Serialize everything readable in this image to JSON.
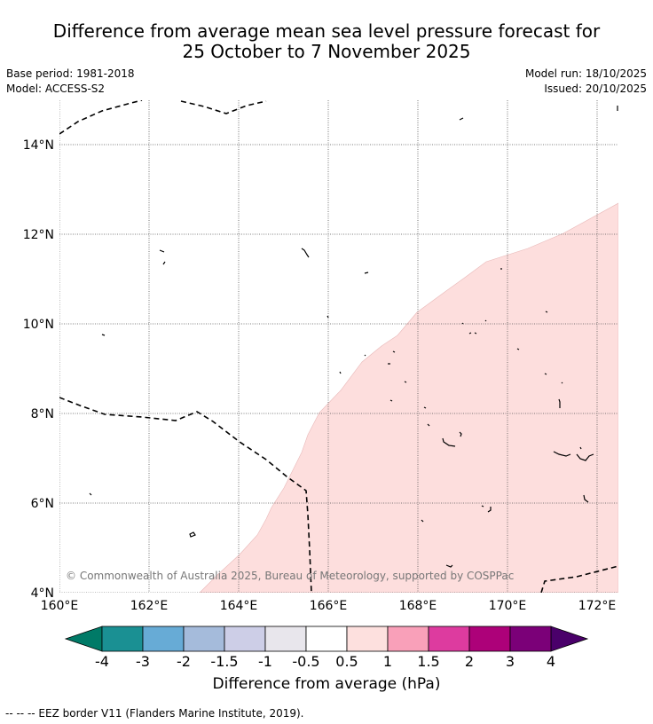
{
  "title": {
    "line1": "Difference from average mean sea level pressure forecast for",
    "line2": "25 October to 7 November 2025"
  },
  "meta": {
    "base_period": "Base period: 1981-2018",
    "model": "Model: ACCESS-S2",
    "model_run": "Model run: 18/10/2025",
    "issued": "Issued: 20/10/2025"
  },
  "map": {
    "lon_labels": [
      "160°E",
      "162°E",
      "164°E",
      "166°E",
      "168°E",
      "170°E",
      "172°E"
    ],
    "lat_labels": [
      "4°N",
      "6°N",
      "8°N",
      "10°N",
      "12°N",
      "14°N"
    ],
    "copyright": "© Commonwealth of Australia 2025, Bureau of Meteorology, supported by COSPPac",
    "anomaly_region_fill": "#fddedd",
    "anomaly_region_category": "0.5 to 1"
  },
  "colorbar": {
    "tick_labels": [
      "-4",
      "-3",
      "-2",
      "-1.5",
      "-1",
      "-0.5",
      "0.5",
      "1",
      "1.5",
      "2",
      "3",
      "4"
    ],
    "colors": [
      "#1a9093",
      "#67abd6",
      "#a5bbdb",
      "#cdcee7",
      "#e8e6ec",
      "#ffffff",
      "#fde0de",
      "#f9a0b9",
      "#dd3b9f",
      "#ad0179",
      "#7b0078"
    ],
    "under_color": "#007a67",
    "over_color": "#4a006a",
    "label": "Difference from average (hPa)"
  },
  "legend": {
    "eez": "--  --  -- EEZ border V11 (Flanders Marine Institute, 2019)."
  }
}
